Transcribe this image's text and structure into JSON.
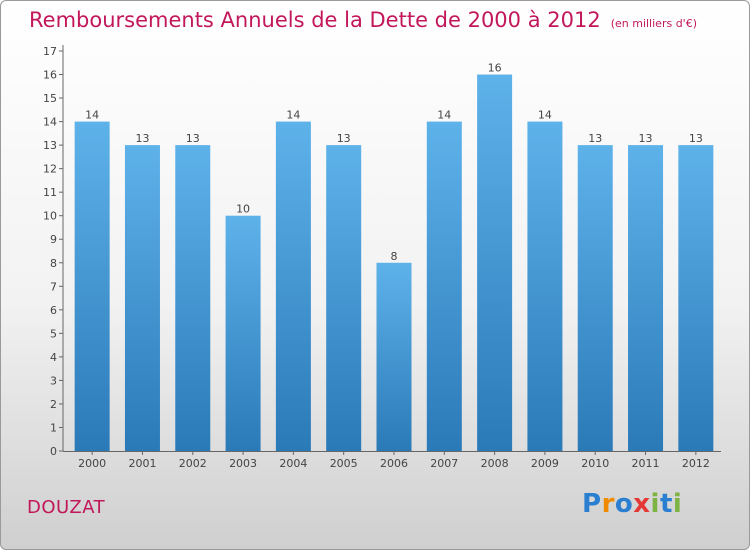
{
  "header": {
    "title": "Remboursements Annuels de la Dette de 2000 à 2012",
    "subtitle": "(en milliers d'€)"
  },
  "footer": {
    "city": "DOUZAT",
    "logo": "Proxiti"
  },
  "colors": {
    "bar_light": "#5eb2ea",
    "bar_dark": "#2a7ab8",
    "title": "#c2185b",
    "axis": "#666666",
    "grid": "#b5b5b5"
  },
  "chart_data": {
    "type": "bar",
    "categories": [
      "2000",
      "2001",
      "2002",
      "2003",
      "2004",
      "2005",
      "2006",
      "2007",
      "2008",
      "2009",
      "2010",
      "2011",
      "2012"
    ],
    "values": [
      14,
      13,
      13,
      10,
      14,
      13,
      8,
      14,
      16,
      14,
      13,
      13,
      13
    ],
    "ylim": [
      0,
      17
    ],
    "yticks": [
      0,
      1,
      2,
      3,
      4,
      5,
      6,
      7,
      8,
      9,
      10,
      11,
      12,
      13,
      14,
      15,
      16,
      17
    ],
    "grid": false,
    "data_labels": true
  }
}
